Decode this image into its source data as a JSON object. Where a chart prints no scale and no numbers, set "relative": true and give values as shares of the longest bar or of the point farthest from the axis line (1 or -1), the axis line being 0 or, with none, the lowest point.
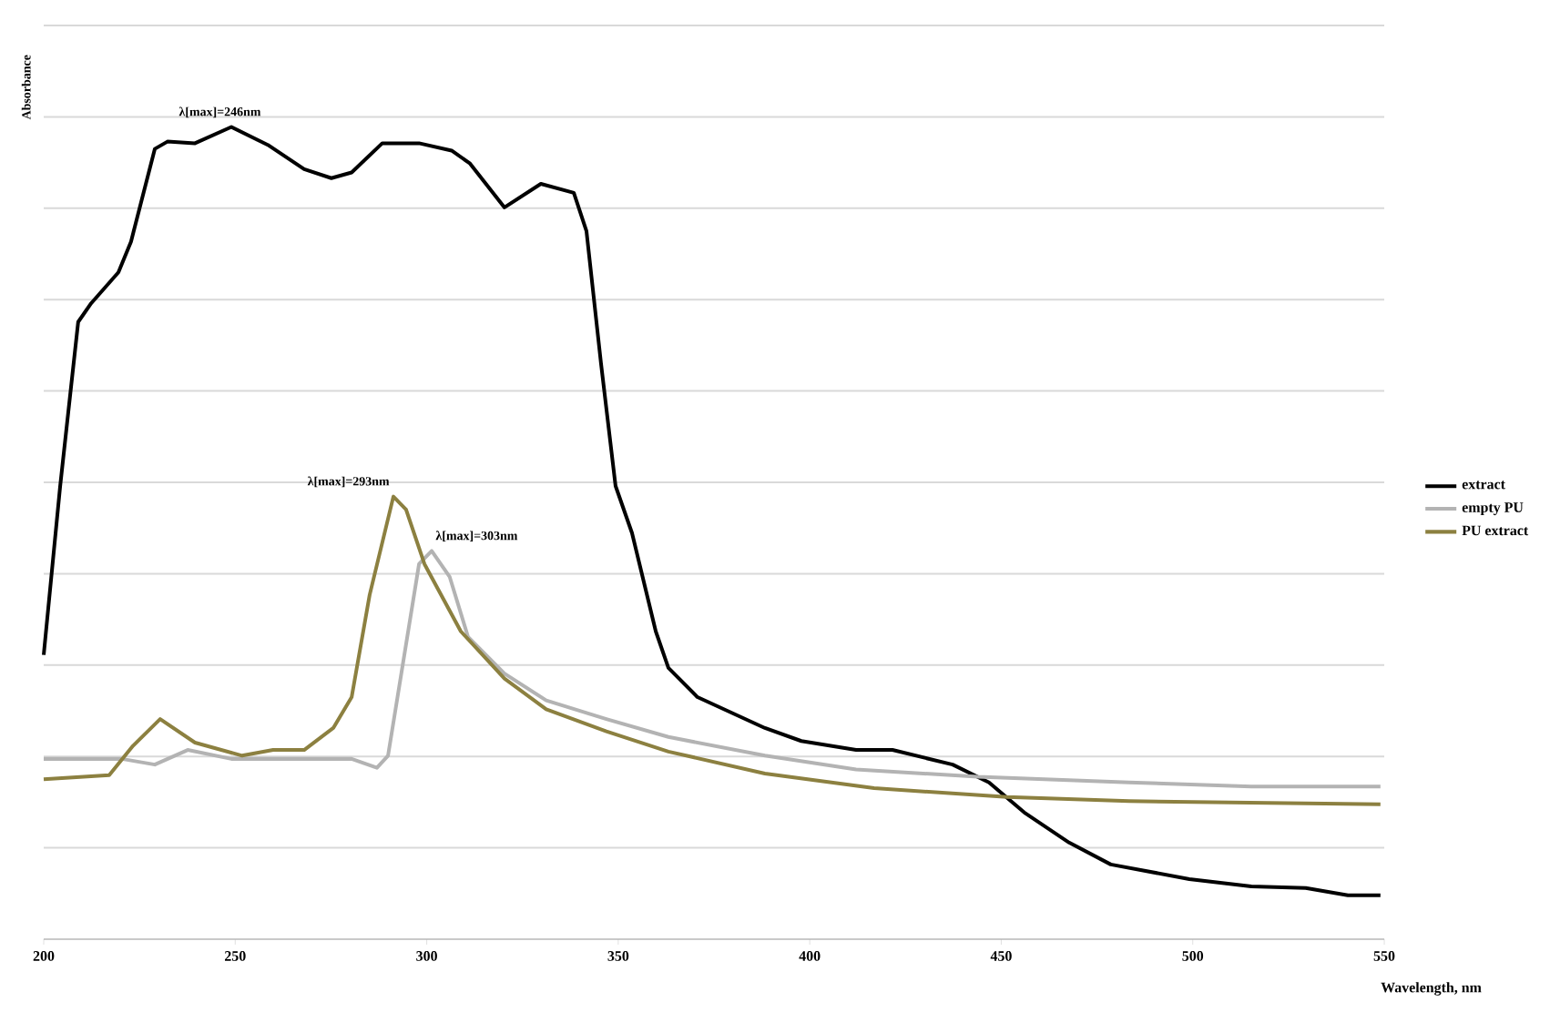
{
  "chart_data": {
    "type": "line",
    "relative": true,
    "xlabel": "Wavelength, nm",
    "ylabel": "Absorbance",
    "xlim": [
      200,
      550
    ],
    "xticks": [
      200,
      250,
      300,
      350,
      400,
      450,
      500,
      550
    ],
    "grid": "y",
    "legend": "right",
    "marker": "none",
    "line_style": "solid",
    "annotations": [
      {
        "text": "λ[max]=246nm",
        "x": 246,
        "y": 1.0
      },
      {
        "text": "λ[max]=293nm",
        "x": 291.3,
        "y": 0.545
      },
      {
        "text": "λ[max]=303nm",
        "x": 301.3,
        "y": 0.478
      }
    ],
    "series": [
      {
        "name": "extract",
        "color": "#000000",
        "x": [
          200,
          204.3,
          209.0,
          212.4,
          219.5,
          222.8,
          229.0,
          232.3,
          239.5,
          249.0,
          258.5,
          268.0,
          275.1,
          280.4,
          288.4,
          298.0,
          306.5,
          311.3,
          320.3,
          329.8,
          338.4,
          341.7,
          345.5,
          349.3,
          353.6,
          359.8,
          363.1,
          370.7,
          388.3,
          397.8,
          412.1,
          421.6,
          437.3,
          446.8,
          456.3,
          467.7,
          478.6,
          499.1,
          515.3,
          529.5,
          540.5,
          549.0
        ],
        "values": [
          0.35,
          0.558,
          0.76,
          0.783,
          0.821,
          0.859,
          0.973,
          0.982,
          0.98,
          1.0,
          0.978,
          0.948,
          0.937,
          0.944,
          0.98,
          0.98,
          0.971,
          0.955,
          0.901,
          0.93,
          0.919,
          0.872,
          0.709,
          0.558,
          0.5,
          0.379,
          0.334,
          0.298,
          0.26,
          0.244,
          0.233,
          0.233,
          0.215,
          0.193,
          0.155,
          0.119,
          0.092,
          0.074,
          0.065,
          0.063,
          0.054,
          0.054
        ]
      },
      {
        "name": "empty PU",
        "color": "#b3b3b3",
        "x": [
          200,
          220.4,
          229.0,
          237.6,
          249.0,
          280.4,
          287.0,
          289.9,
          298.0,
          301.3,
          306.0,
          310.8,
          320.3,
          331.2,
          346.9,
          363.1,
          388.3,
          412.1,
          443.9,
          483.4,
          515.3,
          549.0
        ],
        "values": [
          0.222,
          0.222,
          0.215,
          0.233,
          0.222,
          0.222,
          0.211,
          0.226,
          0.462,
          0.478,
          0.446,
          0.372,
          0.327,
          0.294,
          0.271,
          0.249,
          0.226,
          0.209,
          0.2,
          0.193,
          0.188,
          0.188
        ]
      },
      {
        "name": "PU extract",
        "color": "#8c8040",
        "x": [
          200,
          217.1,
          223.3,
          230.4,
          239.5,
          251.8,
          259.9,
          268.0,
          275.6,
          280.4,
          285.1,
          291.3,
          294.6,
          299.4,
          308.9,
          320.3,
          331.2,
          346.9,
          363.1,
          388.3,
          416.8,
          451.5,
          483.4,
          549.0
        ],
        "values": [
          0.197,
          0.202,
          0.238,
          0.271,
          0.242,
          0.226,
          0.233,
          0.233,
          0.26,
          0.298,
          0.424,
          0.545,
          0.529,
          0.462,
          0.379,
          0.321,
          0.283,
          0.256,
          0.231,
          0.204,
          0.186,
          0.175,
          0.17,
          0.166
        ]
      }
    ]
  }
}
